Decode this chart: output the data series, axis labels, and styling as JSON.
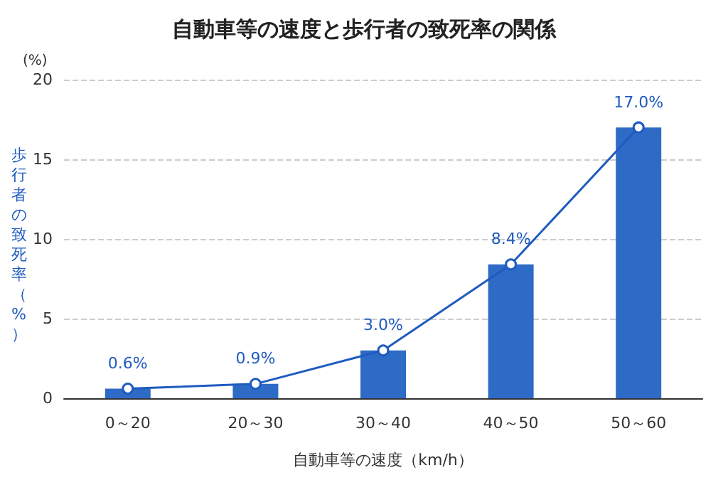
{
  "chart_data": {
    "type": "bar",
    "title": "自動車等の速度と歩行者の致死率の関係",
    "xlabel": "自動車等の速度（km/h）",
    "ylabel": "歩行者の致死率（%）",
    "annotations": [
      "(%)"
    ],
    "categories": [
      "0～20",
      "20～30",
      "30～40",
      "40～50",
      "50～60"
    ],
    "series": [
      {
        "color": "#2e6bc6",
        "values": [
          0.6,
          0.9,
          3.0,
          8.4,
          17.0
        ]
      },
      {
        "type": "line",
        "color": "#1f5bbf",
        "marker": "circle",
        "values": [
          0.6,
          0.9,
          3.0,
          8.4,
          17.0
        ],
        "value_labels": [
          "0.6%",
          "0.9%",
          "3.0%",
          "8.4%",
          "17.0%"
        ]
      }
    ],
    "ylim": [
      0,
      20
    ],
    "yticks": [
      0,
      5,
      10,
      15,
      20
    ],
    "grid": "y"
  }
}
